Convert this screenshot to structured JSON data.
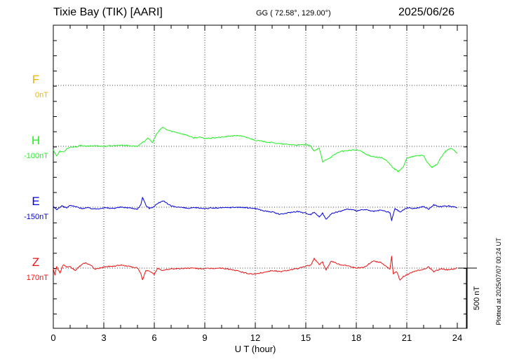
{
  "header": {
    "station": "Tixie Bay (TIK)  [AARI]",
    "coords": "GG ( 72.58°, 129.00°)",
    "date": "2025/06/26"
  },
  "plotted_note": "Plotted at 2025/07/07 00:24 UT",
  "chart_data": {
    "type": "line",
    "xlabel": "U T (hour)",
    "xlim": [
      0,
      24
    ],
    "xticks": [
      "0",
      "3",
      "6",
      "9",
      "12",
      "15",
      "18",
      "21",
      "24"
    ],
    "scale_bar_label": "500 nT",
    "scale_bar_nT": 500,
    "series": [
      {
        "name": "F",
        "baseline_label": "0nT",
        "color": "#f0b400",
        "visible": false,
        "points": []
      },
      {
        "name": "H",
        "baseline_label": "-100nT",
        "color": "#22ee22",
        "points": [
          [
            0,
            -30
          ],
          [
            0.2,
            -80
          ],
          [
            0.4,
            -40
          ],
          [
            0.6,
            -50
          ],
          [
            0.8,
            -20
          ],
          [
            1,
            -10
          ],
          [
            1.3,
            -5
          ],
          [
            1.6,
            5
          ],
          [
            2,
            0
          ],
          [
            2.5,
            5
          ],
          [
            3,
            0
          ],
          [
            3.5,
            5
          ],
          [
            4,
            10
          ],
          [
            4.5,
            5
          ],
          [
            5,
            0
          ],
          [
            5.2,
            20
          ],
          [
            5.4,
            40
          ],
          [
            5.6,
            70
          ],
          [
            5.9,
            30
          ],
          [
            6.1,
            95
          ],
          [
            6.3,
            130
          ],
          [
            6.5,
            160
          ],
          [
            6.7,
            140
          ],
          [
            7,
            125
          ],
          [
            7.5,
            110
          ],
          [
            8,
            90
          ],
          [
            8.3,
            70
          ],
          [
            8.7,
            75
          ],
          [
            9,
            65
          ],
          [
            9.5,
            70
          ],
          [
            10,
            75
          ],
          [
            10.5,
            85
          ],
          [
            11,
            90
          ],
          [
            11.3,
            80
          ],
          [
            11.7,
            65
          ],
          [
            12,
            50
          ],
          [
            12.5,
            40
          ],
          [
            13,
            30
          ],
          [
            13.5,
            20
          ],
          [
            14,
            15
          ],
          [
            14.5,
            10
          ],
          [
            15,
            15
          ],
          [
            15.3,
            0
          ],
          [
            15.5,
            -40
          ],
          [
            15.8,
            -15
          ],
          [
            16,
            -130
          ],
          [
            16.2,
            -110
          ],
          [
            16.5,
            -90
          ],
          [
            16.8,
            -60
          ],
          [
            17,
            -45
          ],
          [
            17.5,
            -35
          ],
          [
            18,
            -30
          ],
          [
            18.3,
            -40
          ],
          [
            18.6,
            -70
          ],
          [
            19,
            -85
          ],
          [
            19.5,
            -95
          ],
          [
            19.8,
            -120
          ],
          [
            20,
            -150
          ],
          [
            20.2,
            -180
          ],
          [
            20.5,
            -210
          ],
          [
            20.8,
            -170
          ],
          [
            21,
            -100
          ],
          [
            21.5,
            -80
          ],
          [
            22,
            -75
          ],
          [
            22.2,
            -130
          ],
          [
            22.5,
            -175
          ],
          [
            22.8,
            -150
          ],
          [
            23,
            -100
          ],
          [
            23.3,
            -40
          ],
          [
            23.6,
            -15
          ],
          [
            23.8,
            -35
          ],
          [
            24,
            -60
          ]
        ]
      },
      {
        "name": "E",
        "baseline_label": "-150nT",
        "color": "#0000dd",
        "points": [
          [
            0,
            5
          ],
          [
            0.2,
            -20
          ],
          [
            0.5,
            10
          ],
          [
            0.8,
            -5
          ],
          [
            1,
            15
          ],
          [
            1.3,
            5
          ],
          [
            1.7,
            -10
          ],
          [
            2,
            -5
          ],
          [
            2.5,
            -15
          ],
          [
            3,
            -5
          ],
          [
            3.5,
            -10
          ],
          [
            4,
            0
          ],
          [
            4.5,
            -5
          ],
          [
            5,
            -15
          ],
          [
            5.2,
            20
          ],
          [
            5.3,
            85
          ],
          [
            5.5,
            15
          ],
          [
            5.7,
            -10
          ],
          [
            5.9,
            0
          ],
          [
            6.2,
            30
          ],
          [
            6.5,
            55
          ],
          [
            6.8,
            25
          ],
          [
            7,
            10
          ],
          [
            7.5,
            0
          ],
          [
            8,
            -10
          ],
          [
            8.5,
            -5
          ],
          [
            9,
            -10
          ],
          [
            10,
            -5
          ],
          [
            11,
            0
          ],
          [
            12,
            -10
          ],
          [
            12.5,
            -30
          ],
          [
            13,
            -40
          ],
          [
            13.5,
            -60
          ],
          [
            14,
            -45
          ],
          [
            14.5,
            -35
          ],
          [
            15,
            -50
          ],
          [
            15.3,
            -60
          ],
          [
            15.5,
            -40
          ],
          [
            15.8,
            -80
          ],
          [
            16,
            -50
          ],
          [
            16.2,
            -100
          ],
          [
            16.5,
            -55
          ],
          [
            17,
            -35
          ],
          [
            17.5,
            -15
          ],
          [
            18,
            -30
          ],
          [
            18.5,
            -20
          ],
          [
            19,
            -35
          ],
          [
            19.5,
            -25
          ],
          [
            20,
            -45
          ],
          [
            20.1,
            -110
          ],
          [
            20.3,
            -10
          ],
          [
            20.6,
            -40
          ],
          [
            21,
            -5
          ],
          [
            21.5,
            -10
          ],
          [
            22,
            5
          ],
          [
            22.3,
            -15
          ],
          [
            22.6,
            20
          ],
          [
            23,
            5
          ],
          [
            23.5,
            10
          ],
          [
            24,
            -5
          ]
        ]
      },
      {
        "name": "Z",
        "baseline_label": "170nT",
        "color": "#ee1111",
        "points": [
          [
            0,
            0
          ],
          [
            0.1,
            -60
          ],
          [
            0.2,
            15
          ],
          [
            0.4,
            -40
          ],
          [
            0.6,
            30
          ],
          [
            0.8,
            5
          ],
          [
            1,
            10
          ],
          [
            1.3,
            -20
          ],
          [
            1.6,
            20
          ],
          [
            1.9,
            45
          ],
          [
            2.2,
            25
          ],
          [
            2.5,
            -10
          ],
          [
            3,
            10
          ],
          [
            3.5,
            15
          ],
          [
            4,
            25
          ],
          [
            4.5,
            15
          ],
          [
            5,
            0
          ],
          [
            5.2,
            -45
          ],
          [
            5.3,
            -100
          ],
          [
            5.5,
            -20
          ],
          [
            5.8,
            -30
          ],
          [
            6,
            -50
          ],
          [
            6.2,
            -5
          ],
          [
            6.5,
            -20
          ],
          [
            7,
            -5
          ],
          [
            7.5,
            -5
          ],
          [
            8,
            0
          ],
          [
            9,
            -5
          ],
          [
            10,
            0
          ],
          [
            10.5,
            -10
          ],
          [
            11,
            -25
          ],
          [
            11.5,
            -45
          ],
          [
            12,
            -50
          ],
          [
            12.5,
            -35
          ],
          [
            13,
            -20
          ],
          [
            13.5,
            -30
          ],
          [
            14,
            -15
          ],
          [
            14.5,
            -5
          ],
          [
            15,
            15
          ],
          [
            15.3,
            25
          ],
          [
            15.5,
            80
          ],
          [
            15.8,
            30
          ],
          [
            16,
            50
          ],
          [
            16.2,
            -20
          ],
          [
            16.5,
            60
          ],
          [
            17,
            30
          ],
          [
            17.5,
            20
          ],
          [
            18,
            0
          ],
          [
            18.5,
            10
          ],
          [
            19,
            60
          ],
          [
            19.5,
            45
          ],
          [
            20,
            -10
          ],
          [
            20.1,
            100
          ],
          [
            20.2,
            -50
          ],
          [
            20.4,
            -30
          ],
          [
            20.6,
            -100
          ],
          [
            20.8,
            -70
          ],
          [
            21,
            -55
          ],
          [
            21.5,
            -25
          ],
          [
            22,
            -10
          ],
          [
            22.3,
            10
          ],
          [
            22.6,
            -30
          ],
          [
            23,
            -5
          ],
          [
            23.5,
            -15
          ],
          [
            24,
            0
          ]
        ]
      }
    ]
  }
}
